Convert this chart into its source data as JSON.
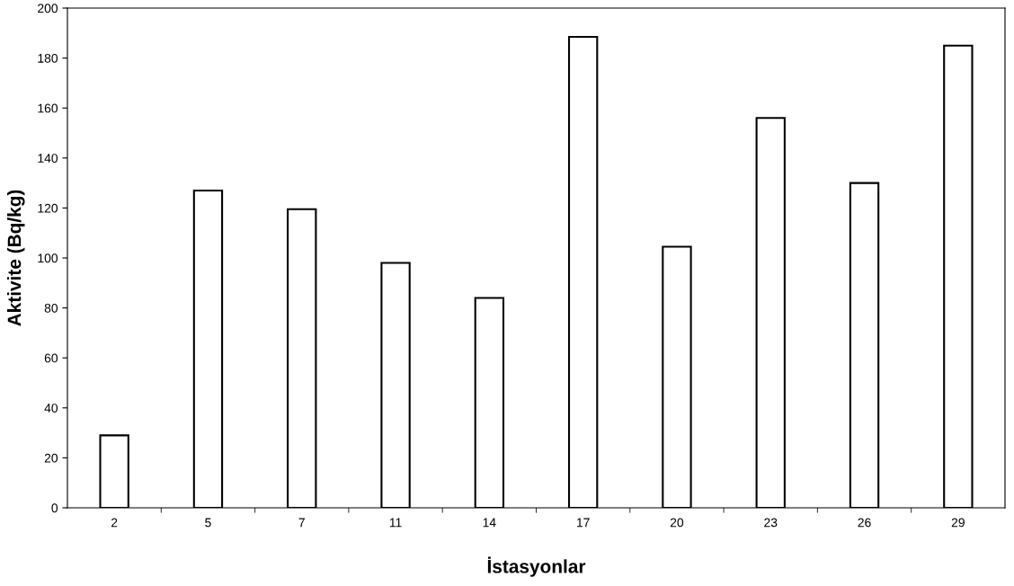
{
  "chart_data": {
    "type": "bar",
    "xlabel": "İstasyonlar",
    "ylabel": "Aktivite (Bq/kg)",
    "categories": [
      "2",
      "5",
      "7",
      "11",
      "14",
      "17",
      "20",
      "23",
      "26",
      "29"
    ],
    "values": [
      29,
      127,
      119.5,
      98,
      84,
      188.5,
      104.5,
      156,
      130,
      185
    ],
    "color": "#ffffff",
    "ylim": [
      0,
      200
    ],
    "yticks": [
      0,
      20,
      40,
      60,
      80,
      100,
      120,
      140,
      160,
      180,
      200
    ],
    "grid": false
  }
}
